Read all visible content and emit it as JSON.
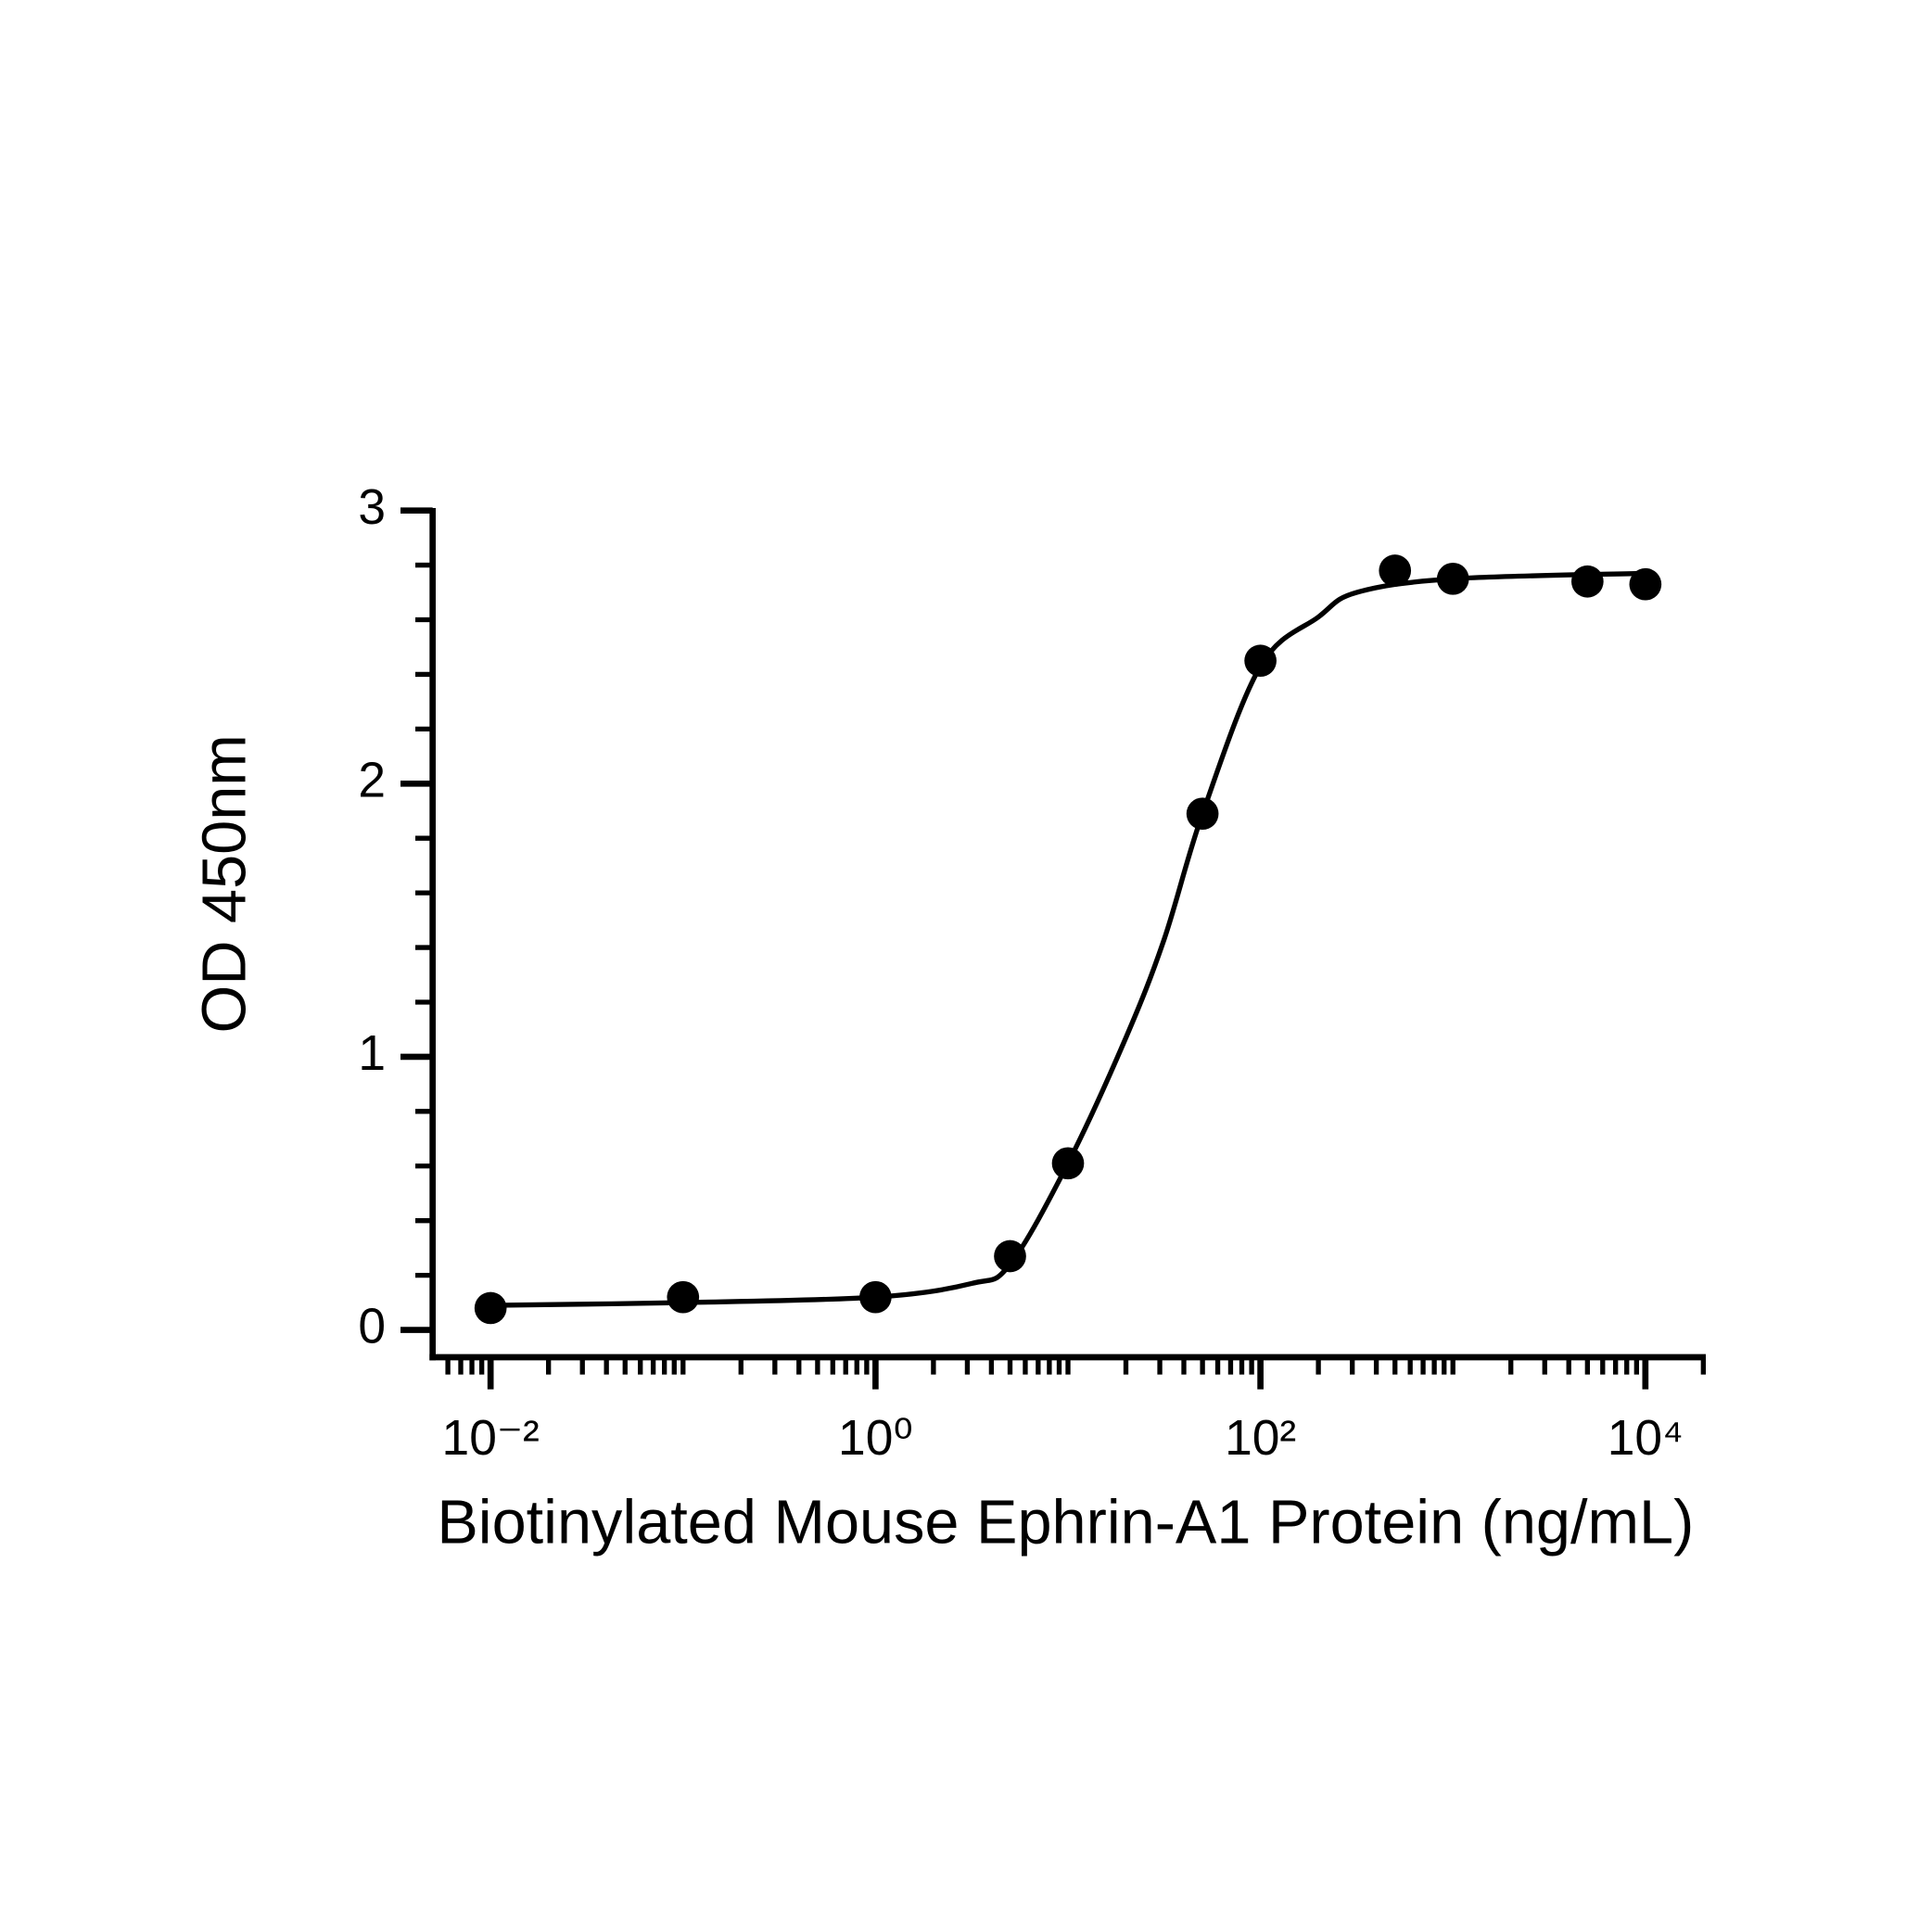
{
  "chart_data": {
    "type": "scatter",
    "x_label": "Biotinylated Mouse Ephrin-A1 Protein (ng/mL)",
    "y_label": "OD 450nm",
    "xscale": "log",
    "xlim": [
      0.005,
      20000
    ],
    "xticks": [
      {
        "value": 0.01,
        "label": "10⁻²"
      },
      {
        "value": 1,
        "label": "10⁰"
      },
      {
        "value": 100,
        "label": "10²"
      },
      {
        "value": 10000,
        "label": "10⁴"
      }
    ],
    "xminorticks": [
      0.006,
      0.007,
      0.008,
      0.009,
      0.02,
      0.03,
      0.04,
      0.05,
      0.06,
      0.07,
      0.08,
      0.09,
      0.1,
      0.2,
      0.3,
      0.4,
      0.5,
      0.6,
      0.7,
      0.8,
      0.9,
      2,
      3,
      4,
      5,
      6,
      7,
      8,
      9,
      10,
      20,
      30,
      40,
      50,
      60,
      70,
      80,
      90,
      200,
      300,
      400,
      500,
      600,
      700,
      800,
      900,
      1000,
      2000,
      3000,
      4000,
      5000,
      6000,
      7000,
      8000,
      9000,
      20000
    ],
    "ylim": [
      -0.1,
      3
    ],
    "yticks": [
      0,
      1,
      2,
      3
    ],
    "yminorticks": [
      0.2,
      0.4,
      0.6,
      0.8,
      1.2,
      1.4,
      1.6,
      1.8,
      2.2,
      2.4,
      2.6,
      2.8
    ],
    "color": "#000000",
    "points": {
      "x": [
        0.01,
        0.1,
        1,
        5,
        10,
        50,
        100,
        500,
        1000,
        5000,
        10000
      ],
      "values": [
        0.08,
        0.12,
        0.12,
        0.27,
        0.61,
        1.89,
        2.45,
        2.78,
        2.75,
        2.74,
        2.73
      ]
    },
    "fit": {
      "x": [
        0.01,
        0.1,
        1,
        3.16,
        5,
        10,
        20,
        31.6,
        50,
        100,
        200,
        316,
        1000,
        10000
      ],
      "values": [
        0.09,
        0.1,
        0.12,
        0.17,
        0.24,
        0.61,
        1.07,
        1.43,
        1.89,
        2.43,
        2.61,
        2.7,
        2.75,
        2.77
      ]
    }
  }
}
